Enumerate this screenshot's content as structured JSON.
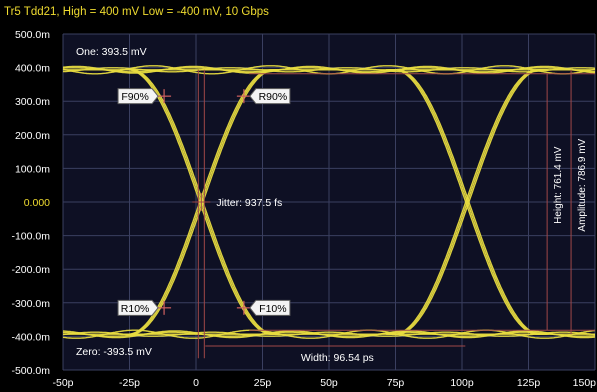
{
  "chart_data": {
    "type": "line",
    "title": "Tr5 Tdd21, High = 400 mV Low = -400 mV, 10 Gbps",
    "x_axis": {
      "unit": "ps",
      "range": [
        -50,
        150
      ],
      "ticks": [
        -50,
        -25,
        0,
        25,
        50,
        75,
        100,
        125,
        150
      ],
      "tick_labels": [
        "-50p",
        "-25p",
        "0",
        "25p",
        "50p",
        "75p",
        "100p",
        "125p",
        "150p"
      ]
    },
    "y_axis": {
      "unit": "V",
      "range": [
        -0.5,
        0.5
      ],
      "ticks": [
        0.5,
        0.4,
        0.3,
        0.2,
        0.1,
        0.0,
        -0.1,
        -0.2,
        -0.3,
        -0.4,
        -0.5
      ],
      "tick_labels": [
        "500.0m",
        "400.0m",
        "300.0m",
        "200.0m",
        "100.0m",
        "0.000",
        "-100.0m",
        "-200.0m",
        "-300.0m",
        "-400.0m",
        "-500.0m"
      ],
      "highlight_tick": "0.000"
    },
    "grid": true,
    "eye": {
      "one_level": 0.3935,
      "zero_level": -0.3935,
      "crossings_ps": [
        2,
        102
      ],
      "period_ps": 100
    },
    "markers": [
      {
        "label": "F90%",
        "x": -12,
        "y": 0.315
      },
      {
        "label": "R90%",
        "x": 18,
        "y": 0.315
      },
      {
        "label": "R10%",
        "x": -12,
        "y": -0.315
      },
      {
        "label": "F10%",
        "x": 18,
        "y": -0.315
      }
    ],
    "measurements": {
      "one": "One: 393.5 mV",
      "zero": "Zero: -393.5 mV",
      "jitter": "Jitter: 937.5 fs",
      "width": "Width: 96.54 ps",
      "height": "Height: 761.4 mV",
      "amplitude": "Amplitude: 786.9 mV"
    },
    "colors": {
      "background": "#000000",
      "plot_area": "#0e1024",
      "grid": "#3a3f60",
      "trace": "#e8dc40",
      "measure_lines": "#a04848",
      "tick_text": "#ffffff",
      "zero_tick_text": "#f0dc30",
      "title_text": "#f0dc30"
    }
  }
}
